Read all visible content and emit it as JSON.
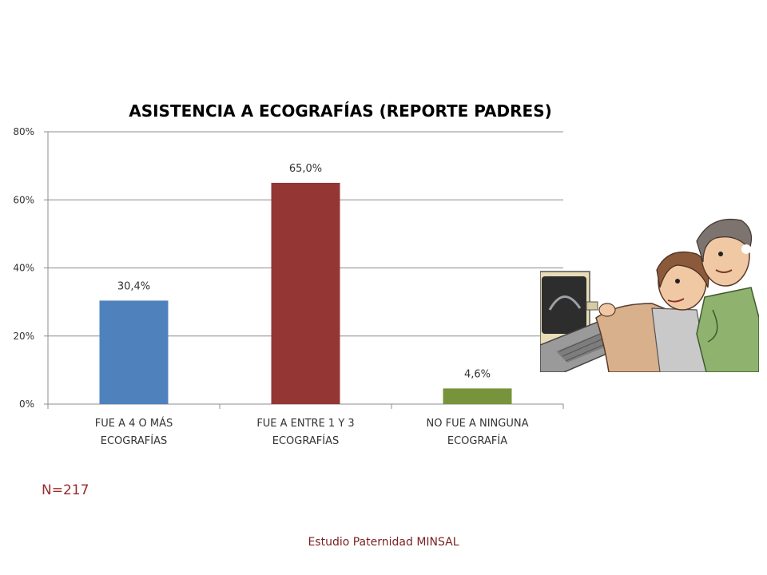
{
  "chart_data": {
    "type": "bar",
    "title": "ASISTENCIA A ECOGRAFÍAS (REPORTE PADRES)",
    "categories": [
      [
        "FUE A 4 O MÁS",
        "ECOGRAFÍAS"
      ],
      [
        "FUE A ENTRE 1 Y 3",
        "ECOGRAFÍAS"
      ],
      [
        "NO FUE A NINGUNA",
        "ECOGRAFÍA"
      ]
    ],
    "values": [
      30.4,
      65.0,
      4.6
    ],
    "data_labels": [
      "30,4%",
      "65,0%",
      "4,6%"
    ],
    "bar_colors": [
      "#4f81bd",
      "#943634",
      "#77933c"
    ],
    "ylim": [
      0,
      80
    ],
    "yticks": [
      0,
      20,
      40,
      60,
      80
    ],
    "ytick_labels": [
      "0%",
      "20%",
      "40%",
      "60%",
      "80%"
    ],
    "grid": true,
    "legend": "none"
  },
  "note": "N=217",
  "source": "Estudio Paternidad MINSAL",
  "illustration": "ultrasound-scene-illustration"
}
